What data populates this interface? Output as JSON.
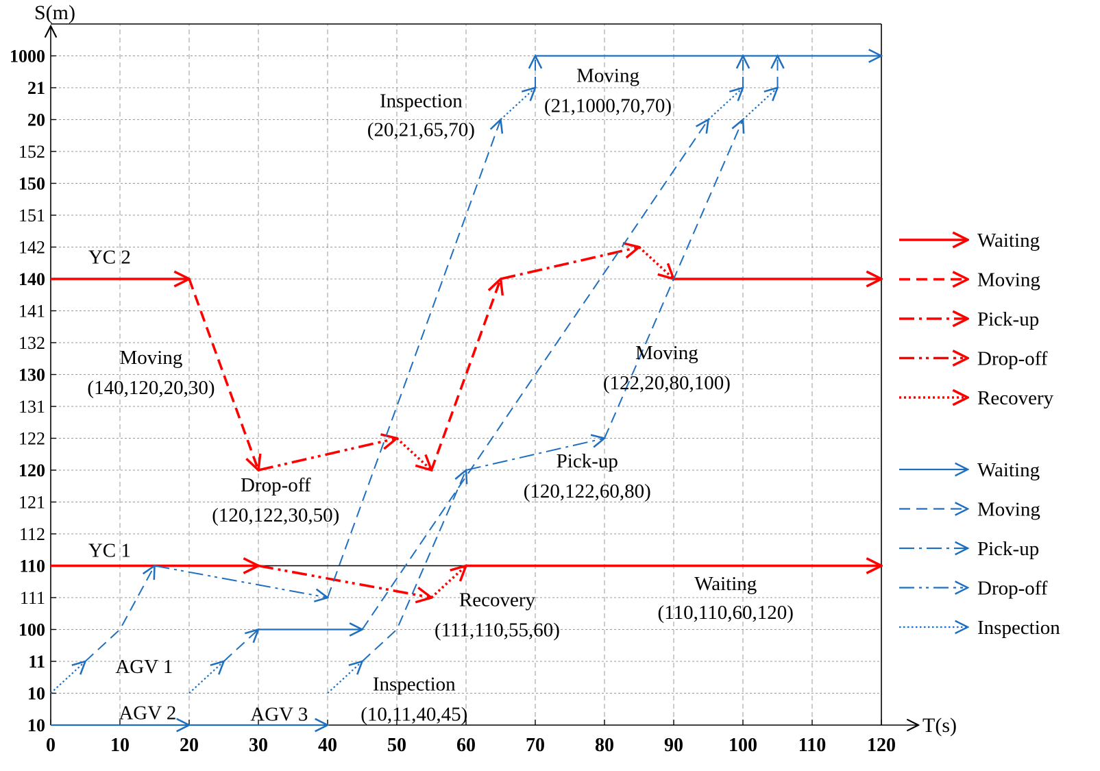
{
  "chart_data": {
    "type": "line",
    "title": "",
    "xlabel": "T(s)",
    "ylabel": "S(m)",
    "xlim": [
      0,
      120
    ],
    "x_ticks": [
      0,
      10,
      20,
      30,
      40,
      50,
      60,
      70,
      80,
      90,
      100,
      110,
      120
    ],
    "y_categories": [
      "10",
      "10",
      "11",
      "100",
      "111",
      "110",
      "112",
      "121",
      "120",
      "122",
      "131",
      "130",
      "132",
      "141",
      "140",
      "142",
      "151",
      "150",
      "152",
      "20",
      "21",
      "1000"
    ],
    "y_bold": [
      true,
      true,
      true,
      true,
      false,
      true,
      false,
      false,
      true,
      false,
      false,
      true,
      false,
      false,
      true,
      false,
      false,
      true,
      false,
      true,
      true,
      true
    ],
    "grid": true,
    "colors": {
      "yc": "#ff0000",
      "agv": "#1f6fc0",
      "axis": "#000000",
      "grid": "#999999"
    },
    "series": [
      {
        "name": "YC 2",
        "equipment": "YC",
        "segments": [
          {
            "kind": "Waiting",
            "points": [
              [
                0,
                14
              ],
              [
                20,
                14
              ]
            ]
          },
          {
            "kind": "Moving",
            "points": [
              [
                20,
                14
              ],
              [
                30,
                8
              ]
            ]
          },
          {
            "kind": "Drop-off",
            "points": [
              [
                30,
                8
              ],
              [
                50,
                9
              ]
            ]
          },
          {
            "kind": "Recovery",
            "points": [
              [
                50,
                9
              ],
              [
                55,
                8
              ]
            ]
          },
          {
            "kind": "Moving",
            "points": [
              [
                55,
                8
              ],
              [
                65,
                14
              ]
            ]
          },
          {
            "kind": "Pick-up",
            "points": [
              [
                65,
                14
              ],
              [
                85,
                15
              ]
            ]
          },
          {
            "kind": "Recovery",
            "points": [
              [
                85,
                15
              ],
              [
                90,
                14
              ]
            ]
          },
          {
            "kind": "Waiting",
            "points": [
              [
                90,
                14
              ],
              [
                120,
                14
              ]
            ]
          }
        ]
      },
      {
        "name": "YC 1",
        "equipment": "YC",
        "segments": [
          {
            "kind": "Waiting",
            "points": [
              [
                0,
                5
              ],
              [
                30,
                5
              ]
            ]
          },
          {
            "kind": "Drop-off",
            "points": [
              [
                30,
                5
              ],
              [
                55,
                4
              ]
            ]
          },
          {
            "kind": "Recovery",
            "points": [
              [
                55,
                4
              ],
              [
                60,
                5
              ]
            ]
          },
          {
            "kind": "Waiting",
            "points": [
              [
                60,
                5
              ],
              [
                120,
                5
              ]
            ]
          }
        ]
      },
      {
        "name": "AGV 1",
        "equipment": "AGV",
        "segments": [
          {
            "kind": "Inspection",
            "points": [
              [
                0,
                1
              ],
              [
                5,
                2
              ]
            ]
          },
          {
            "kind": "Moving",
            "points": [
              [
                5,
                2
              ],
              [
                10,
                3
              ],
              [
                15,
                5
              ]
            ]
          },
          {
            "kind": "Drop-off",
            "points": [
              [
                15,
                5
              ],
              [
                40,
                4
              ]
            ]
          },
          {
            "kind": "Moving",
            "points": [
              [
                40,
                4
              ],
              [
                65,
                19
              ]
            ]
          },
          {
            "kind": "Inspection",
            "points": [
              [
                65,
                19
              ],
              [
                70,
                20
              ]
            ]
          },
          {
            "kind": "Moving",
            "points": [
              [
                70,
                20
              ],
              [
                70,
                21
              ]
            ]
          },
          {
            "kind": "Waiting",
            "points": [
              [
                70,
                21
              ],
              [
                120,
                21
              ]
            ]
          }
        ]
      },
      {
        "name": "AGV 2",
        "equipment": "AGV",
        "segments": [
          {
            "kind": "Waiting",
            "points": [
              [
                0,
                0
              ],
              [
                20,
                0
              ]
            ]
          },
          {
            "kind": "Inspection",
            "points": [
              [
                20,
                1
              ],
              [
                25,
                2
              ]
            ]
          },
          {
            "kind": "Moving",
            "points": [
              [
                25,
                2
              ],
              [
                30,
                3
              ]
            ]
          },
          {
            "kind": "Waiting",
            "points": [
              [
                30,
                3
              ],
              [
                45,
                3
              ]
            ]
          },
          {
            "kind": "Moving",
            "points": [
              [
                45,
                3
              ],
              [
                95,
                19
              ]
            ]
          },
          {
            "kind": "Inspection",
            "points": [
              [
                95,
                19
              ],
              [
                100,
                20
              ]
            ]
          },
          {
            "kind": "Moving",
            "points": [
              [
                100,
                20
              ],
              [
                100,
                21
              ]
            ]
          }
        ]
      },
      {
        "name": "AGV 3",
        "equipment": "AGV",
        "segments": [
          {
            "kind": "Waiting",
            "points": [
              [
                20,
                0
              ],
              [
                40,
                0
              ]
            ]
          },
          {
            "kind": "Inspection",
            "points": [
              [
                40,
                1
              ],
              [
                45,
                2
              ]
            ]
          },
          {
            "kind": "Moving",
            "points": [
              [
                45,
                2
              ],
              [
                50,
                3
              ],
              [
                60,
                8
              ]
            ]
          },
          {
            "kind": "Pick-up",
            "points": [
              [
                60,
                8
              ],
              [
                80,
                9
              ]
            ]
          },
          {
            "kind": "Moving",
            "points": [
              [
                80,
                9
              ],
              [
                100,
                19
              ]
            ]
          },
          {
            "kind": "Inspection",
            "points": [
              [
                100,
                19
              ],
              [
                105,
                20
              ]
            ]
          },
          {
            "kind": "Moving",
            "points": [
              [
                105,
                20
              ],
              [
                105,
                21
              ]
            ]
          }
        ]
      }
    ],
    "annotations": [
      {
        "id": "yc2",
        "text": "YC 2",
        "at": [
          8.5,
          14.7
        ]
      },
      {
        "id": "yc1",
        "text": "YC 1",
        "at": [
          8.5,
          5.5
        ]
      },
      {
        "id": "agv1",
        "text": "AGV 1",
        "at": [
          13.5,
          1.85
        ]
      },
      {
        "id": "agv2",
        "text": "AGV 2",
        "at": [
          14,
          0.4
        ]
      },
      {
        "id": "agv3",
        "text": "AGV 3",
        "at": [
          33,
          0.35
        ]
      },
      {
        "id": "mv1",
        "text": "Moving",
        "at": [
          14.5,
          11.55
        ]
      },
      {
        "id": "mv1v",
        "text": "(140,120,20,30)",
        "at": [
          14.5,
          10.6
        ]
      },
      {
        "id": "do1",
        "text": "Drop-off",
        "at": [
          32.5,
          7.55
        ]
      },
      {
        "id": "do1v",
        "text": "(120,122,30,50)",
        "at": [
          32.5,
          6.6
        ]
      },
      {
        "id": "insp1",
        "text": "Inspection",
        "at": [
          53.5,
          19.6
        ]
      },
      {
        "id": "insp1v",
        "text": "(20,21,65,70)",
        "at": [
          53.5,
          18.7
        ]
      },
      {
        "id": "mv2",
        "text": "Moving",
        "at": [
          80.5,
          20.4
        ]
      },
      {
        "id": "mv2v",
        "text": "(21,1000,70,70)",
        "at": [
          80.5,
          19.45
        ]
      },
      {
        "id": "mv3",
        "text": "Moving",
        "at": [
          89,
          11.7
        ]
      },
      {
        "id": "mv3v",
        "text": "(122,20,80,100)",
        "at": [
          89,
          10.75
        ]
      },
      {
        "id": "pu1",
        "text": "Pick-up",
        "at": [
          77.5,
          8.3
        ]
      },
      {
        "id": "pu1v",
        "text": "(120,122,60,80)",
        "at": [
          77.5,
          7.35
        ]
      },
      {
        "id": "rec1",
        "text": "Recovery",
        "at": [
          64.5,
          3.95
        ]
      },
      {
        "id": "rec1v",
        "text": "(111,110,55,60)",
        "at": [
          64.5,
          3.0
        ]
      },
      {
        "id": "wait1",
        "text": "Waiting",
        "at": [
          97.5,
          4.45
        ]
      },
      {
        "id": "wait1v",
        "text": "(110,110,60,120)",
        "at": [
          97.5,
          3.55
        ]
      },
      {
        "id": "insp2",
        "text": "Inspection",
        "at": [
          52.5,
          1.3
        ]
      },
      {
        "id": "insp2v",
        "text": "(10,11,40,45)",
        "at": [
          52.5,
          0.35
        ]
      }
    ],
    "legend": {
      "position": "right",
      "entries": [
        {
          "label": "Waiting",
          "equipment": "YC",
          "style": "Waiting"
        },
        {
          "label": "Moving",
          "equipment": "YC",
          "style": "Moving"
        },
        {
          "label": "Pick-up",
          "equipment": "YC",
          "style": "Pick-up"
        },
        {
          "label": "Drop-off",
          "equipment": "YC",
          "style": "Drop-off"
        },
        {
          "label": "Recovery",
          "equipment": "YC",
          "style": "Recovery"
        },
        {
          "label": "Waiting",
          "equipment": "AGV",
          "style": "Waiting"
        },
        {
          "label": "Moving",
          "equipment": "AGV",
          "style": "Moving"
        },
        {
          "label": "Pick-up",
          "equipment": "AGV",
          "style": "Pick-up"
        },
        {
          "label": "Drop-off",
          "equipment": "AGV",
          "style": "Drop-off"
        },
        {
          "label": "Inspection",
          "equipment": "AGV",
          "style": "Inspection"
        }
      ]
    }
  }
}
